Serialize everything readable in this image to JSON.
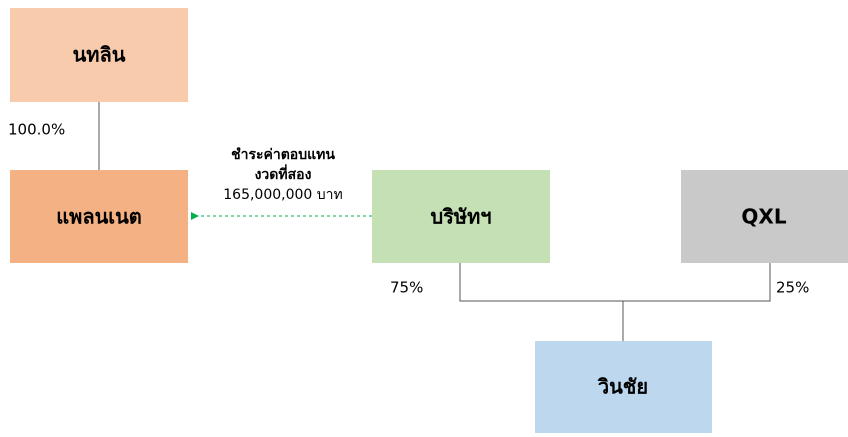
{
  "nodes": [
    {
      "label": "นทลิน"
    },
    {
      "label": "แพลนเนต"
    },
    {
      "label": "บริษัทฯ"
    },
    {
      "label": "QXL"
    },
    {
      "label": "วินชัย"
    }
  ],
  "edges": [
    {
      "label": "100.0%"
    },
    {
      "label": "75%"
    },
    {
      "label": "25%"
    }
  ],
  "annotation": {
    "lines": [
      "ชำระค่าตอบแทน",
      "งวดที่สอง",
      "165,000,000 บาท"
    ]
  }
}
